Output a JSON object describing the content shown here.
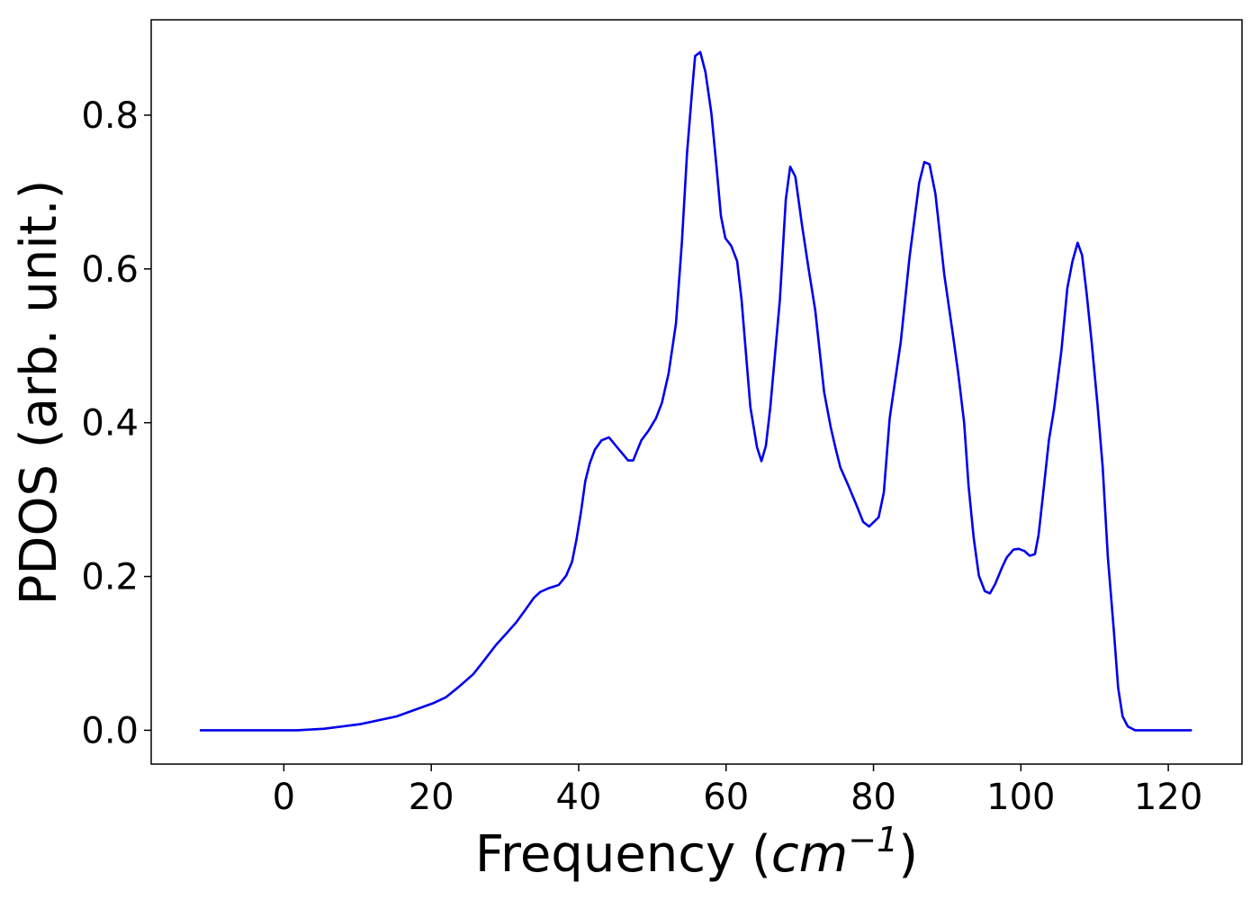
{
  "chart_data": {
    "type": "line",
    "xlabel": "Frequency (cm−1)",
    "ylabel": "PDOS (arb. unit.)",
    "xlim": [
      -18,
      130
    ],
    "ylim": [
      -0.044,
      0.924
    ],
    "xticks": [
      0,
      20,
      40,
      60,
      80,
      100,
      120
    ],
    "yticks": [
      {
        "value": 0,
        "label": "0.0"
      },
      0.2,
      0.4,
      0.6,
      0.8
    ],
    "x": [
      -11.4,
      1.8,
      5.5,
      10.4,
      15.3,
      20.2,
      22,
      23.8,
      25.7,
      27.1,
      28.7,
      30.3,
      31.5,
      32.8,
      33.9,
      34.8,
      36.0,
      37.3,
      38.3,
      39.1,
      39.7,
      40.3,
      40.9,
      41.5,
      42.2,
      43.1,
      44.1,
      46.7,
      47.4,
      48.5,
      49.5,
      50.5,
      51.3,
      52.2,
      53.2,
      54.0,
      54.7,
      55.4,
      55.8,
      56.5,
      57.2,
      58.0,
      58.7,
      59.3,
      59.9,
      60.7,
      61.5,
      62.1,
      63.3,
      64.2,
      64.8,
      65.4,
      66.0,
      67.3,
      68.1,
      68.7,
      69.4,
      70.3,
      71.2,
      72.1,
      73.3,
      74.2,
      74.9,
      75.5,
      76.6,
      77.6,
      78.6,
      79.4,
      80.7,
      81.4,
      82.2,
      83.7,
      84.9,
      86.2,
      86.9,
      87.6,
      88.4,
      89.6,
      90.8,
      91.5,
      92.3,
      92.9,
      93.6,
      94.3,
      95.1,
      95.8,
      96.5,
      97.5,
      98.1,
      99.0,
      99.7,
      100.5,
      101.2,
      101.9,
      102.4,
      103.0,
      103.8,
      104.5,
      105.5,
      106.3,
      107.0,
      107.7,
      108.3,
      108.9,
      109.6,
      110.4,
      111.1,
      111.8,
      112.6,
      113.2,
      113.8,
      114.5,
      115.5,
      123.2
    ],
    "series": [
      {
        "name": "PDOS",
        "color": "#0000ee",
        "values": [
          0,
          0,
          0.002,
          0.008,
          0.018,
          0.035,
          0.043,
          0.057,
          0.073,
          0.09,
          0.11,
          0.127,
          0.14,
          0.157,
          0.172,
          0.18,
          0.185,
          0.189,
          0.201,
          0.219,
          0.248,
          0.283,
          0.324,
          0.347,
          0.365,
          0.377,
          0.381,
          0.351,
          0.351,
          0.377,
          0.39,
          0.406,
          0.426,
          0.464,
          0.529,
          0.634,
          0.75,
          0.833,
          0.877,
          0.882,
          0.856,
          0.803,
          0.733,
          0.669,
          0.64,
          0.63,
          0.61,
          0.56,
          0.42,
          0.368,
          0.35,
          0.37,
          0.42,
          0.56,
          0.69,
          0.733,
          0.72,
          0.657,
          0.6,
          0.546,
          0.44,
          0.394,
          0.365,
          0.342,
          0.318,
          0.295,
          0.271,
          0.265,
          0.277,
          0.309,
          0.406,
          0.505,
          0.616,
          0.712,
          0.739,
          0.736,
          0.698,
          0.593,
          0.513,
          0.464,
          0.4,
          0.318,
          0.25,
          0.201,
          0.181,
          0.178,
          0.19,
          0.213,
          0.225,
          0.235,
          0.236,
          0.233,
          0.227,
          0.229,
          0.254,
          0.306,
          0.377,
          0.418,
          0.494,
          0.575,
          0.61,
          0.634,
          0.618,
          0.57,
          0.505,
          0.423,
          0.342,
          0.225,
          0.131,
          0.055,
          0.018,
          0.005,
          0,
          0
        ]
      }
    ]
  }
}
